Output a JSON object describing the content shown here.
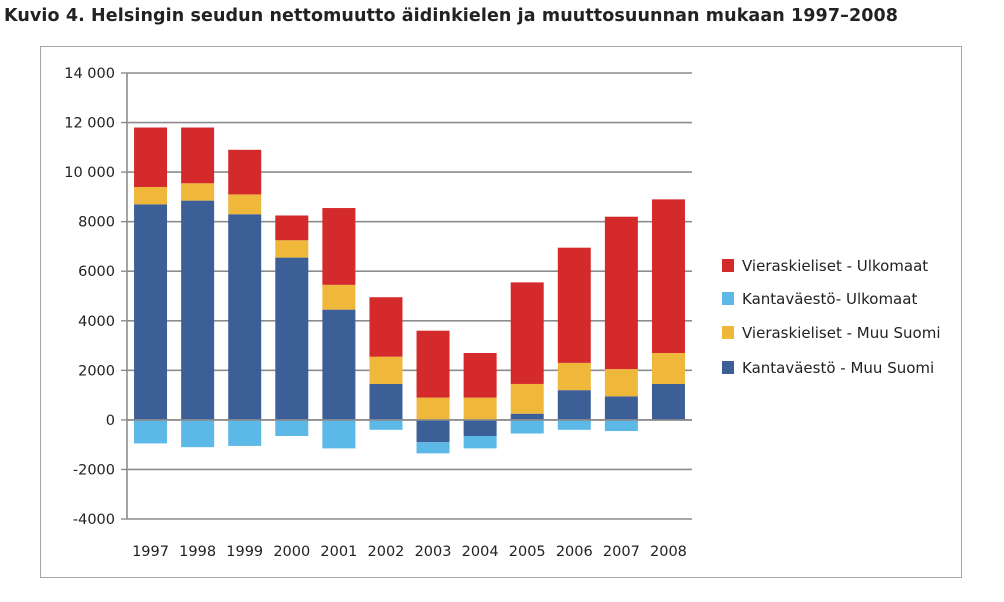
{
  "title": "Kuvio 4. Helsingin seudun nettomuutto äidinkielen ja muuttosuunnan mukaan 1997–2008",
  "chart_data": {
    "type": "bar",
    "stacked": true,
    "categories": [
      "1997",
      "1998",
      "1999",
      "2000",
      "2001",
      "2002",
      "2003",
      "2004",
      "2005",
      "2006",
      "2007",
      "2008"
    ],
    "ylim": [
      -4000,
      14000
    ],
    "yticks": [
      -4000,
      -2000,
      0,
      2000,
      4000,
      6000,
      8000,
      10000,
      12000,
      14000
    ],
    "ytick_labels": [
      "-4000",
      "-2000",
      "0",
      "2000",
      "4000",
      "6000",
      "8000",
      "10 000",
      "12 000",
      "14 000"
    ],
    "grid": true,
    "legend_position": "right",
    "series": [
      {
        "name": "Kantaväestö - Muu Suomi",
        "color": "#3c5f97",
        "values": [
          8700,
          8850,
          8300,
          6550,
          4450,
          1450,
          -900,
          -650,
          250,
          1200,
          950,
          1450
        ]
      },
      {
        "name": "Kantaväestö- Ulkomaat",
        "color": "#5cb8e6",
        "values": [
          -950,
          -1100,
          -1050,
          -650,
          -1150,
          -400,
          -450,
          -500,
          -550,
          -400,
          -450,
          0
        ]
      },
      {
        "name": "Vieraskieliset - Muu Suomi",
        "color": "#efb83a",
        "values": [
          700,
          700,
          800,
          700,
          1000,
          1100,
          900,
          900,
          1200,
          1100,
          1100,
          1250
        ]
      },
      {
        "name": "Vieraskieliset - Ulkomaat",
        "color": "#d42a2c",
        "values": [
          2400,
          2250,
          1800,
          1000,
          3100,
          2400,
          2700,
          1800,
          4100,
          4650,
          6150,
          6200
        ]
      }
    ],
    "legend_order": [
      "Vieraskieliset - Ulkomaat",
      "Kantaväestö- Ulkomaat",
      "Vieraskieliset - Muu Suomi",
      "Kantaväestö - Muu Suomi"
    ]
  }
}
